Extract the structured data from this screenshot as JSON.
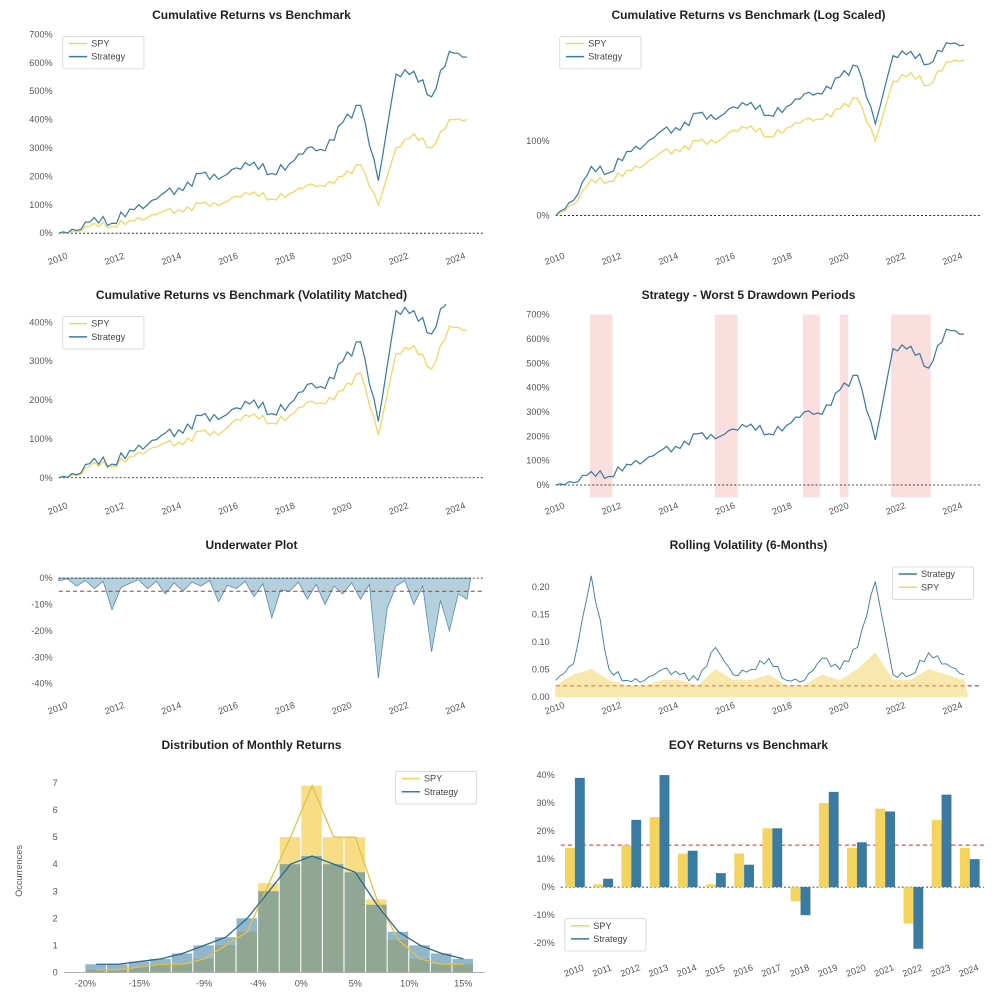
{
  "colors": {
    "spy": "#f4d35e",
    "strategy": "#3b7aa1",
    "strategy_fill": "#a8c8d8",
    "zero_line": "#111111",
    "red_dash": "#d62728",
    "grid": "#dddddd",
    "dd_band": "#f8c8c8",
    "text": "#333333",
    "kde_spy": "#e0c14a",
    "kde_strat": "#2b6a8f"
  },
  "xaxis_years": [
    2010,
    2012,
    2014,
    2016,
    2018,
    2020,
    2022,
    2024
  ],
  "cum_linear": {
    "title": "Cumulative Returns vs Benchmark",
    "ylim": [
      -50,
      700
    ],
    "yticks": [
      0,
      100,
      200,
      300,
      400,
      500,
      600,
      700
    ],
    "legend_pos": "top-left",
    "spy": [
      0,
      5,
      35,
      25,
      45,
      55,
      80,
      75,
      105,
      98,
      130,
      145,
      120,
      140,
      170,
      165,
      200,
      240,
      100,
      300,
      350,
      300,
      400,
      400,
      420
    ],
    "strategy": [
      0,
      10,
      55,
      35,
      85,
      100,
      145,
      150,
      210,
      190,
      230,
      250,
      210,
      245,
      300,
      290,
      390,
      450,
      185,
      560,
      570,
      480,
      640,
      620,
      680
    ]
  },
  "cum_log": {
    "title": "Cumulative Returns vs Benchmark (Log Scaled)",
    "yticks": [
      0,
      100
    ],
    "legend_pos": "top-left",
    "spy": [
      0.15,
      0.2,
      0.32,
      0.31,
      0.36,
      0.39,
      0.45,
      0.45,
      0.5,
      0.49,
      0.55,
      0.57,
      0.52,
      0.56,
      0.6,
      0.6,
      0.65,
      0.7,
      0.5,
      0.78,
      0.82,
      0.76,
      0.87,
      0.88,
      0.9
    ],
    "strategy": [
      0.15,
      0.22,
      0.38,
      0.35,
      0.45,
      0.48,
      0.55,
      0.55,
      0.63,
      0.6,
      0.66,
      0.68,
      0.62,
      0.66,
      0.72,
      0.72,
      0.8,
      0.85,
      0.58,
      0.9,
      0.92,
      0.86,
      0.96,
      0.95,
      0.99
    ]
  },
  "cum_volmatch": {
    "title": "Cumulative Returns vs Benchmark (Volatility Matched)",
    "ylim": [
      -50,
      420
    ],
    "yticks": [
      0,
      100,
      200,
      300,
      400
    ],
    "legend_pos": "top-left",
    "spy": [
      0,
      5,
      40,
      30,
      55,
      70,
      90,
      85,
      120,
      110,
      150,
      165,
      140,
      160,
      195,
      190,
      225,
      270,
      110,
      320,
      340,
      280,
      390,
      380,
      400
    ],
    "strategy": [
      0,
      8,
      50,
      35,
      70,
      85,
      115,
      115,
      160,
      150,
      180,
      200,
      165,
      190,
      240,
      230,
      300,
      350,
      145,
      430,
      430,
      370,
      480,
      460,
      500
    ]
  },
  "drawdown_periods": {
    "title": "Strategy - Worst 5 Drawdown Periods",
    "ylim": [
      -50,
      700
    ],
    "yticks": [
      0,
      100,
      200,
      300,
      400,
      500,
      600,
      700
    ],
    "bands": [
      [
        2011.2,
        2012.0
      ],
      [
        2015.6,
        2016.4
      ],
      [
        2018.7,
        2019.3
      ],
      [
        2020.0,
        2020.3
      ],
      [
        2021.8,
        2023.2
      ]
    ],
    "strategy": [
      0,
      10,
      55,
      35,
      85,
      100,
      145,
      150,
      210,
      190,
      230,
      250,
      210,
      245,
      300,
      290,
      390,
      450,
      185,
      560,
      570,
      480,
      640,
      620,
      680
    ]
  },
  "underwater": {
    "title": "Underwater Plot",
    "ylim": [
      -45,
      5
    ],
    "yticks": [
      0,
      -10,
      -20,
      -30,
      -40
    ],
    "zero": 0,
    "dash_line": -5,
    "values": [
      -1,
      -3,
      -4,
      -12,
      -2,
      -4,
      -6,
      -5,
      -3,
      -9,
      -4,
      -7,
      -15,
      -5,
      -8,
      -10,
      -6,
      -8,
      -38,
      -3,
      -10,
      -28,
      -20,
      -8,
      -6
    ]
  },
  "rolling_vol": {
    "title": "Rolling Volatility (6-Months)",
    "ylim": [
      0,
      0.24
    ],
    "yticks": [
      0.0,
      0.05,
      0.1,
      0.15,
      0.2
    ],
    "dash_line": 0.02,
    "legend_pos": "top-right",
    "spy": [
      0.02,
      0.04,
      0.05,
      0.03,
      0.02,
      0.02,
      0.03,
      0.03,
      0.02,
      0.05,
      0.03,
      0.03,
      0.04,
      0.02,
      0.02,
      0.04,
      0.03,
      0.05,
      0.08,
      0.03,
      0.03,
      0.05,
      0.04,
      0.03,
      0.03
    ],
    "strategy": [
      0.03,
      0.06,
      0.22,
      0.05,
      0.03,
      0.03,
      0.05,
      0.04,
      0.03,
      0.09,
      0.04,
      0.05,
      0.07,
      0.03,
      0.03,
      0.07,
      0.05,
      0.09,
      0.21,
      0.04,
      0.04,
      0.08,
      0.06,
      0.04,
      0.04
    ]
  },
  "monthly_hist": {
    "title": "Distribution of Monthly Returns",
    "ylabel": "Occurrences",
    "xlim": [
      -22,
      17
    ],
    "xticks": [
      -20,
      -15,
      -10,
      -9,
      -5,
      -4,
      0,
      5,
      10,
      15
    ],
    "xtick_labels": [
      "-20%",
      "-15%",
      "",
      "-9%",
      "",
      "-4%",
      "0%",
      "5%",
      "10%",
      "15%"
    ],
    "ylim": [
      0,
      7.5
    ],
    "yticks": [
      0,
      1,
      2,
      3,
      4,
      5,
      6,
      7
    ],
    "bins": [
      -20,
      -18,
      -16,
      -14,
      -12,
      -10,
      -8,
      -6,
      -4,
      -2,
      0,
      2,
      4,
      6,
      8,
      10,
      12,
      14,
      16
    ],
    "spy": [
      0.1,
      0.1,
      0.2,
      0.3,
      0.3,
      0.5,
      1.0,
      1.5,
      3.3,
      5.0,
      6.9,
      5.0,
      5.0,
      2.7,
      1.2,
      0.5,
      0.3,
      0.3
    ],
    "strategy": [
      0.3,
      0.3,
      0.4,
      0.5,
      0.7,
      1.0,
      1.3,
      2.0,
      3.0,
      4.0,
      4.3,
      4.0,
      3.7,
      2.5,
      1.5,
      1.0,
      0.7,
      0.5
    ],
    "legend_pos": "top-right"
  },
  "eoy": {
    "title": "EOY Returns  vs Benchmark",
    "ylim": [
      -25,
      42
    ],
    "yticks": [
      -20,
      -10,
      0,
      10,
      20,
      30,
      40
    ],
    "dash_line": 15,
    "years": [
      2010,
      2011,
      2012,
      2013,
      2014,
      2015,
      2016,
      2017,
      2018,
      2019,
      2020,
      2021,
      2022,
      2023,
      2024
    ],
    "spy": [
      14,
      1,
      15,
      25,
      12,
      1,
      12,
      21,
      -5,
      30,
      14,
      28,
      -13,
      24,
      14
    ],
    "strategy": [
      39,
      3,
      24,
      40,
      13,
      5,
      8,
      21,
      -10,
      34,
      16,
      27,
      -22,
      33,
      10
    ],
    "legend_pos": "bottom-left"
  }
}
